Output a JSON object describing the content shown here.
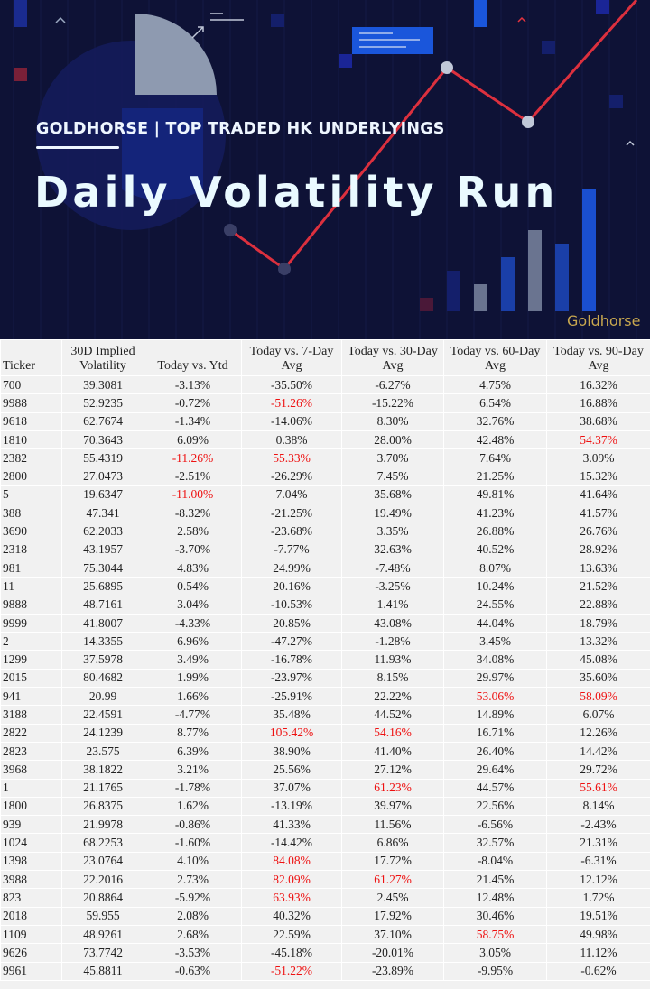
{
  "header": {
    "subtitle": "GOLDHORSE | TOP TRADED HK UNDERLYINGS",
    "title": "Daily Volatility Run",
    "logo": "Goldhorse",
    "colors": {
      "background": "#0e1236",
      "accent_red": "#e8333f",
      "accent_blue": "#1a56db",
      "logo_gold": "#c9a84f"
    }
  },
  "table": {
    "columns": [
      "Ticker",
      "30D Implied Volatility",
      "Today vs. Ytd",
      "Today vs. 7-Day Avg",
      "Today vs. 30-Day Avg",
      "Today vs. 60-Day Avg",
      "Today vs. 90-Day Avg"
    ],
    "highlight_color": "#ee1111",
    "rows": [
      {
        "cells": [
          "700",
          "39.3081",
          "-3.13%",
          "-35.50%",
          "-6.27%",
          "4.75%",
          "16.32%"
        ],
        "red": []
      },
      {
        "cells": [
          "9988",
          "52.9235",
          "-0.72%",
          "-51.26%",
          "-15.22%",
          "6.54%",
          "16.88%"
        ],
        "red": [
          3
        ]
      },
      {
        "cells": [
          "9618",
          "62.7674",
          "-1.34%",
          "-14.06%",
          "8.30%",
          "32.76%",
          "38.68%"
        ],
        "red": []
      },
      {
        "cells": [
          "1810",
          "70.3643",
          "6.09%",
          "0.38%",
          "28.00%",
          "42.48%",
          "54.37%"
        ],
        "red": [
          6
        ]
      },
      {
        "cells": [
          "2382",
          "55.4319",
          "-11.26%",
          "55.33%",
          "3.70%",
          "7.64%",
          "3.09%"
        ],
        "red": [
          2,
          3
        ]
      },
      {
        "cells": [
          "2800",
          "27.0473",
          "-2.51%",
          "-26.29%",
          "7.45%",
          "21.25%",
          "15.32%"
        ],
        "red": []
      },
      {
        "cells": [
          "5",
          "19.6347",
          "-11.00%",
          "7.04%",
          "35.68%",
          "49.81%",
          "41.64%"
        ],
        "red": [
          2
        ]
      },
      {
        "cells": [
          "388",
          "47.341",
          "-8.32%",
          "-21.25%",
          "19.49%",
          "41.23%",
          "41.57%"
        ],
        "red": []
      },
      {
        "cells": [
          "3690",
          "62.2033",
          "2.58%",
          "-23.68%",
          "3.35%",
          "26.88%",
          "26.76%"
        ],
        "red": []
      },
      {
        "cells": [
          "2318",
          "43.1957",
          "-3.70%",
          "-7.77%",
          "32.63%",
          "40.52%",
          "28.92%"
        ],
        "red": []
      },
      {
        "cells": [
          "981",
          "75.3044",
          "4.83%",
          "24.99%",
          "-7.48%",
          "8.07%",
          "13.63%"
        ],
        "red": []
      },
      {
        "cells": [
          "11",
          "25.6895",
          "0.54%",
          "20.16%",
          "-3.25%",
          "10.24%",
          "21.52%"
        ],
        "red": []
      },
      {
        "cells": [
          "9888",
          "48.7161",
          "3.04%",
          "-10.53%",
          "1.41%",
          "24.55%",
          "22.88%"
        ],
        "red": []
      },
      {
        "cells": [
          "9999",
          "41.8007",
          "-4.33%",
          "20.85%",
          "43.08%",
          "44.04%",
          "18.79%"
        ],
        "red": []
      },
      {
        "cells": [
          "2",
          "14.3355",
          "6.96%",
          "-47.27%",
          "-1.28%",
          "3.45%",
          "13.32%"
        ],
        "red": []
      },
      {
        "cells": [
          "1299",
          "37.5978",
          "3.49%",
          "-16.78%",
          "11.93%",
          "34.08%",
          "45.08%"
        ],
        "red": []
      },
      {
        "cells": [
          "2015",
          "80.4682",
          "1.99%",
          "-23.97%",
          "8.15%",
          "29.97%",
          "35.60%"
        ],
        "red": []
      },
      {
        "cells": [
          "941",
          "20.99",
          "1.66%",
          "-25.91%",
          "22.22%",
          "53.06%",
          "58.09%"
        ],
        "red": [
          5,
          6
        ]
      },
      {
        "cells": [
          "3188",
          "22.4591",
          "-4.77%",
          "35.48%",
          "44.52%",
          "14.89%",
          "6.07%"
        ],
        "red": []
      },
      {
        "cells": [
          "2822",
          "24.1239",
          "8.77%",
          "105.42%",
          "54.16%",
          "16.71%",
          "12.26%"
        ],
        "red": [
          3,
          4
        ]
      },
      {
        "cells": [
          "2823",
          "23.575",
          "6.39%",
          "38.90%",
          "41.40%",
          "26.40%",
          "14.42%"
        ],
        "red": []
      },
      {
        "cells": [
          "3968",
          "38.1822",
          "3.21%",
          "25.56%",
          "27.12%",
          "29.64%",
          "29.72%"
        ],
        "red": []
      },
      {
        "cells": [
          "1",
          "21.1765",
          "-1.78%",
          "37.07%",
          "61.23%",
          "44.57%",
          "55.61%"
        ],
        "red": [
          4,
          6
        ]
      },
      {
        "cells": [
          "1800",
          "26.8375",
          "1.62%",
          "-13.19%",
          "39.97%",
          "22.56%",
          "8.14%"
        ],
        "red": []
      },
      {
        "cells": [
          "939",
          "21.9978",
          "-0.86%",
          "41.33%",
          "11.56%",
          "-6.56%",
          "-2.43%"
        ],
        "red": []
      },
      {
        "cells": [
          "1024",
          "68.2253",
          "-1.60%",
          "-14.42%",
          "6.86%",
          "32.57%",
          "21.31%"
        ],
        "red": []
      },
      {
        "cells": [
          "1398",
          "23.0764",
          "4.10%",
          "84.08%",
          "17.72%",
          "-8.04%",
          "-6.31%"
        ],
        "red": [
          3
        ]
      },
      {
        "cells": [
          "3988",
          "22.2016",
          "2.73%",
          "82.09%",
          "61.27%",
          "21.45%",
          "12.12%"
        ],
        "red": [
          3,
          4
        ]
      },
      {
        "cells": [
          "823",
          "20.8864",
          "-5.92%",
          "63.93%",
          "2.45%",
          "12.48%",
          "1.72%"
        ],
        "red": [
          3
        ]
      },
      {
        "cells": [
          "2018",
          "59.955",
          "2.08%",
          "40.32%",
          "17.92%",
          "30.46%",
          "19.51%"
        ],
        "red": []
      },
      {
        "cells": [
          "1109",
          "48.9261",
          "2.68%",
          "22.59%",
          "37.10%",
          "58.75%",
          "49.98%"
        ],
        "red": [
          5
        ]
      },
      {
        "cells": [
          "9626",
          "73.7742",
          "-3.53%",
          "-45.18%",
          "-20.01%",
          "3.05%",
          "11.12%"
        ],
        "red": []
      },
      {
        "cells": [
          "9961",
          "45.8811",
          "-0.63%",
          "-51.22%",
          "-23.89%",
          "-9.95%",
          "-0.62%"
        ],
        "red": [
          3
        ]
      }
    ]
  }
}
